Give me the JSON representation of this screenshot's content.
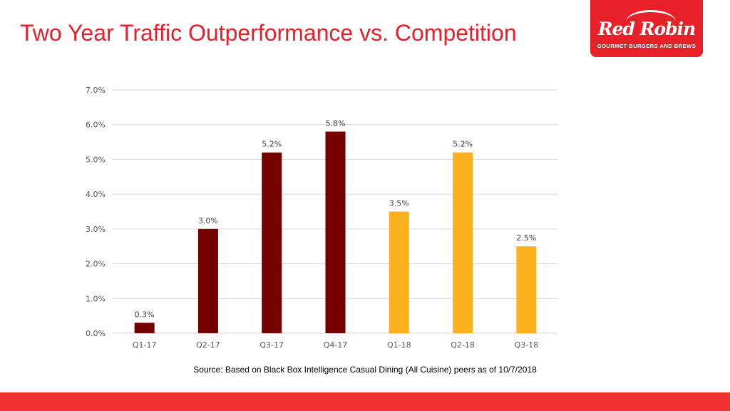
{
  "title": "Two Year Traffic Outperformance vs. Competition",
  "logo": {
    "name": "Red Robin",
    "tagline": "GOURMET BURGERS AND BREWS"
  },
  "source": "Source: Based on Black Box Intelligence Casual Dining (All Cuisine) peers as of 10/7/2018",
  "colors": {
    "fy17": "#750000",
    "fy18": "#FDB11E",
    "accent": "#E8202A"
  },
  "chart_data": {
    "type": "bar",
    "title": "Two Year Traffic Outperformance vs. Competition",
    "xlabel": "",
    "ylabel": "",
    "categories": [
      "Q1-17",
      "Q2-17",
      "Q3-17",
      "Q4-17",
      "Q1-18",
      "Q2-18",
      "Q3-18"
    ],
    "values": [
      0.3,
      3.0,
      5.2,
      5.8,
      3.5,
      5.2,
      2.5
    ],
    "data_labels": [
      "0.3%",
      "3.0%",
      "5.2%",
      "5.8%",
      "3.5%",
      "5.2%",
      "2.5%"
    ],
    "bar_colors": [
      "#750000",
      "#750000",
      "#750000",
      "#750000",
      "#FDB11E",
      "#FDB11E",
      "#FDB11E"
    ],
    "ylim": [
      0,
      7
    ],
    "yticks": [
      0,
      1,
      2,
      3,
      4,
      5,
      6,
      7
    ],
    "ytick_labels": [
      "0.0%",
      "1.0%",
      "2.0%",
      "3.0%",
      "4.0%",
      "5.0%",
      "6.0%",
      "7.0%"
    ],
    "grid": true,
    "legend": "none"
  }
}
